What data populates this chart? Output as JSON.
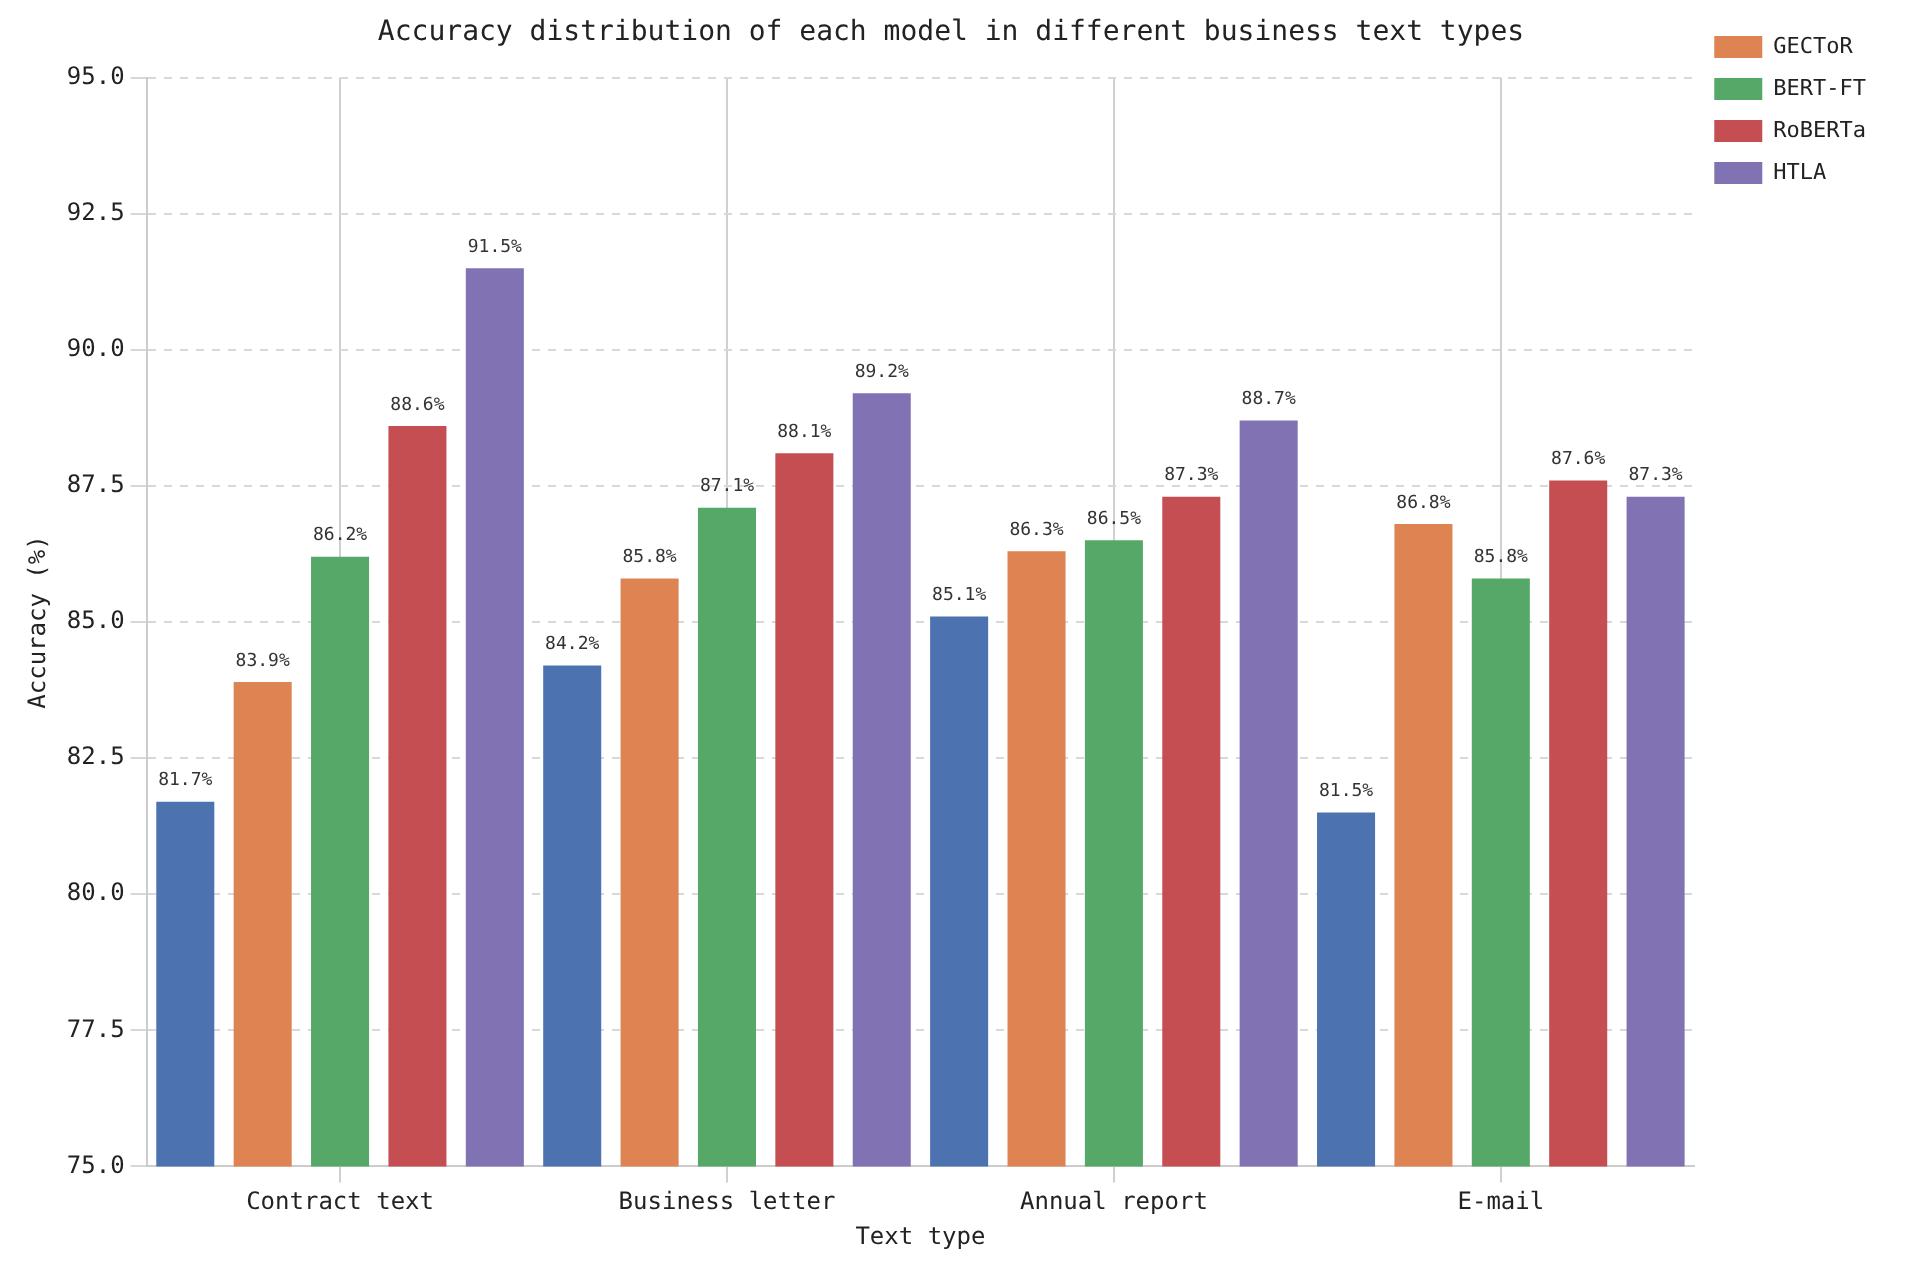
{
  "chart_data": {
    "type": "bar",
    "title": "Accuracy distribution of each model in different business text types",
    "xlabel": "Text type",
    "ylabel": "Accuracy (%)",
    "categories": [
      "Contract text",
      "Business letter",
      "Annual report",
      "E-mail"
    ],
    "series": [
      {
        "color": "#4c72b0",
        "values": [
          81.7,
          84.2,
          85.1,
          81.5
        ],
        "value_labels": [
          "81.7%",
          "84.2%",
          "85.1%",
          "81.5%"
        ]
      },
      {
        "name": "GECToR",
        "color": "#dd8452",
        "values": [
          83.9,
          85.8,
          86.3,
          86.8
        ],
        "value_labels": [
          "83.9%",
          "85.8%",
          "86.3%",
          "86.8%"
        ]
      },
      {
        "name": "BERT-FT",
        "color": "#55a868",
        "values": [
          86.2,
          87.1,
          86.5,
          85.8
        ],
        "value_labels": [
          "86.2%",
          "87.1%",
          "86.5%",
          "85.8%"
        ]
      },
      {
        "name": "RoBERTa",
        "color": "#c44e52",
        "values": [
          88.6,
          88.1,
          87.3,
          87.6
        ],
        "value_labels": [
          "88.6%",
          "88.1%",
          "87.3%",
          "87.6%"
        ]
      },
      {
        "name": "HTLA",
        "color": "#8172b3",
        "values": [
          91.5,
          89.2,
          88.7,
          87.3
        ],
        "value_labels": [
          "91.5%",
          "89.2%",
          "88.7%",
          "87.3%"
        ]
      }
    ],
    "ylim": [
      75,
      95
    ],
    "yticks": [
      {
        "value": 75,
        "label": "75.0"
      },
      {
        "value": 77.5,
        "label": "77.5"
      },
      {
        "value": 80,
        "label": "80.0"
      },
      {
        "value": 82.5,
        "label": "82.5"
      },
      {
        "value": 85,
        "label": "85.0"
      },
      {
        "value": 87.5,
        "label": "87.5"
      },
      {
        "value": 90,
        "label": "90.0"
      },
      {
        "value": 92.5,
        "label": "92.5"
      },
      {
        "value": 95,
        "label": "95.0"
      }
    ],
    "grid": true,
    "legend": "top right"
  }
}
